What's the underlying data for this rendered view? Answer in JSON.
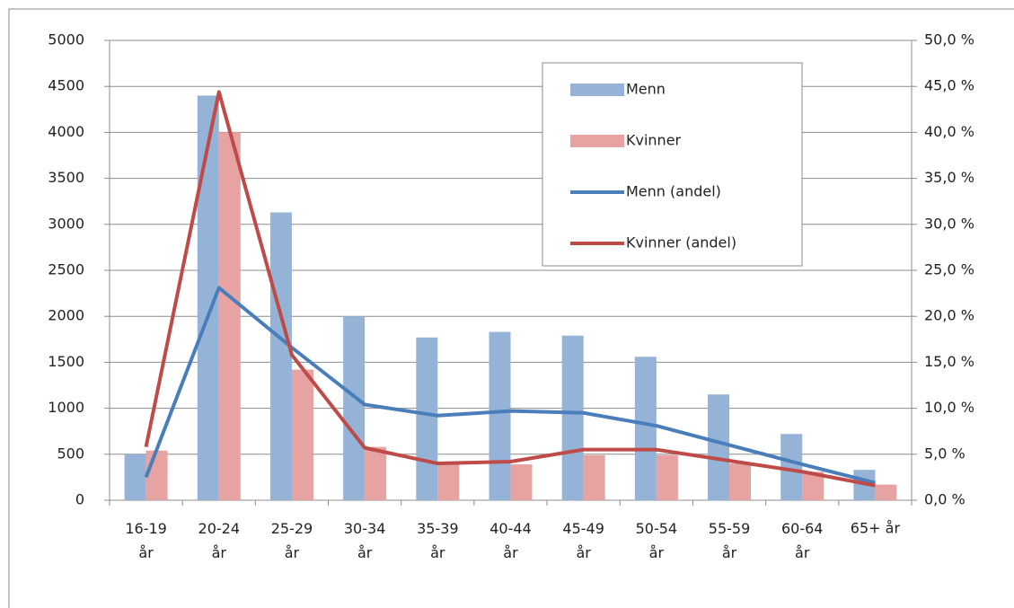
{
  "chart_data": {
    "type": "bar",
    "categories": [
      "16-19 år",
      "20-24 år",
      "25-29 år",
      "30-34 år",
      "35-39 år",
      "40-44 år",
      "45-49 år",
      "50-54 år",
      "55-59 år",
      "60-64 år",
      "65+ år"
    ],
    "series": [
      {
        "name": "Menn",
        "type": "bar",
        "color": "#95b3d7",
        "values": [
          500,
          4400,
          3130,
          2000,
          1770,
          1830,
          1790,
          1560,
          1150,
          720,
          330
        ]
      },
      {
        "name": "Kvinner",
        "type": "bar",
        "color": "#e6a3a2",
        "values": [
          540,
          4000,
          1420,
          580,
          400,
          390,
          490,
          490,
          400,
          310,
          170
        ]
      },
      {
        "name": "Menn (andel)",
        "type": "line",
        "axis": "y2",
        "color": "#4a7ebb",
        "values": [
          2.5,
          23.1,
          16.6,
          10.4,
          9.2,
          9.7,
          9.5,
          8.1,
          6.0,
          3.9,
          1.9
        ]
      },
      {
        "name": "Kvinner (andel)",
        "type": "line",
        "axis": "y2",
        "color": "#be4b48",
        "values": [
          5.8,
          44.4,
          15.8,
          5.7,
          4.0,
          4.2,
          5.5,
          5.5,
          4.3,
          3.1,
          1.6
        ]
      }
    ],
    "ylim": [
      0,
      5000
    ],
    "yticks": [
      0,
      500,
      1000,
      1500,
      2000,
      2500,
      3000,
      3500,
      4000,
      4500,
      5000
    ],
    "y2lim": [
      0,
      50
    ],
    "y2ticks": [
      {
        "value": 0,
        "label": "0,0 %"
      },
      {
        "value": 5,
        "label": "5,0 %"
      },
      {
        "value": 10,
        "label": "10,0 %"
      },
      {
        "value": 15,
        "label": "15,0 %"
      },
      {
        "value": 20,
        "label": "20,0 %"
      },
      {
        "value": 25,
        "label": "25,0 %"
      },
      {
        "value": 30,
        "label": "30,0 %"
      },
      {
        "value": 35,
        "label": "35,0 %"
      },
      {
        "value": 40,
        "label": "40,0 %"
      },
      {
        "value": 45,
        "label": "45,0 %"
      },
      {
        "value": 50,
        "label": "50,0 %"
      }
    ],
    "grid": true,
    "legend": "upper right"
  }
}
